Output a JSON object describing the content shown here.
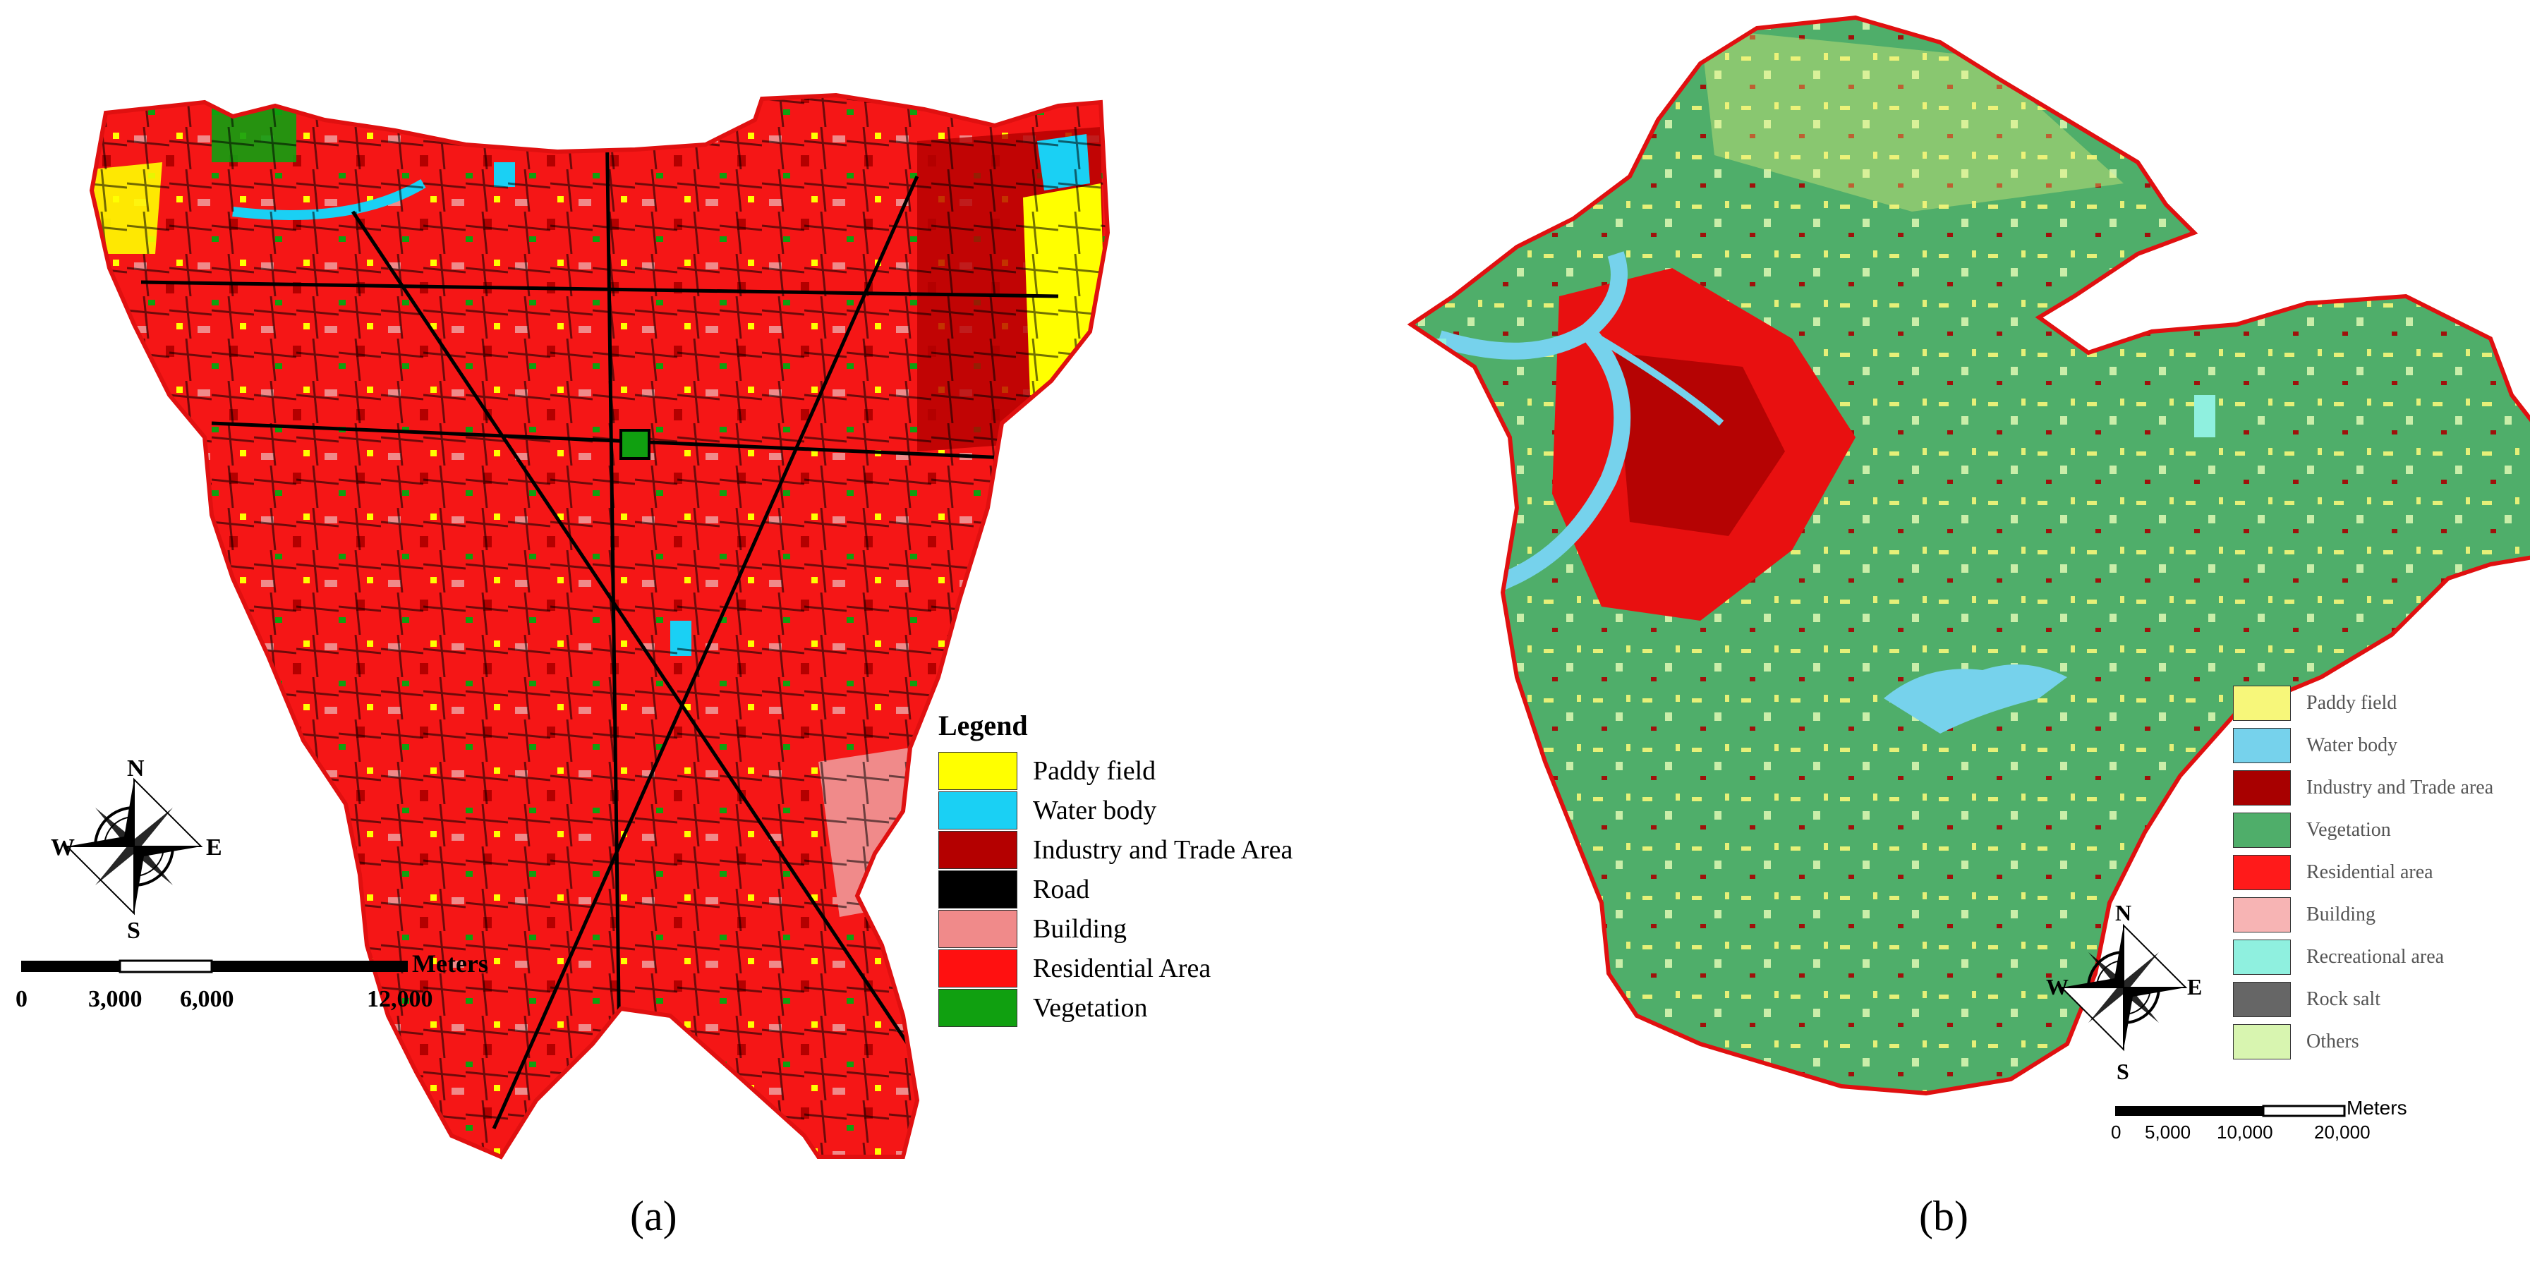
{
  "panel_a": {
    "caption": "(a)",
    "legend": {
      "title": "Legend",
      "items": [
        {
          "label": "Paddy field",
          "color": "#ffff00"
        },
        {
          "label": "Water body",
          "color": "#1ad0f4"
        },
        {
          "label": "Industry and Trade Area",
          "color": "#b40000"
        },
        {
          "label": "Road",
          "color": "#000000"
        },
        {
          "label": "Building",
          "color": "#f08a8a"
        },
        {
          "label": "Residential Area",
          "color": "#ff1010"
        },
        {
          "label": "Vegetation",
          "color": "#10a010"
        }
      ]
    },
    "compass": {
      "n": "N",
      "s": "S",
      "e": "E",
      "w": "W"
    },
    "scale": {
      "unit": "Meters",
      "ticks": [
        "0",
        "3,000",
        "6,000",
        "12,000"
      ]
    }
  },
  "panel_b": {
    "caption": "(b)",
    "legend": {
      "items": [
        {
          "label": "Paddy field",
          "color": "#f7f77a"
        },
        {
          "label": "Water body",
          "color": "#76d2ec"
        },
        {
          "label": "Industry and Trade area",
          "color": "#a80000"
        },
        {
          "label": "Vegetation",
          "color": "#4fae6a"
        },
        {
          "label": "Residential area",
          "color": "#ff1a1a"
        },
        {
          "label": "Building",
          "color": "#f7b4b4"
        },
        {
          "label": "Recreational area",
          "color": "#8ff0df"
        },
        {
          "label": "Rock salt",
          "color": "#666666"
        },
        {
          "label": "Others",
          "color": "#d8f5b0"
        }
      ]
    },
    "compass": {
      "n": "N",
      "s": "S",
      "e": "E",
      "w": "W"
    },
    "scale": {
      "unit": "Meters",
      "ticks": [
        "0",
        "5,000",
        "10,000",
        "20,000"
      ]
    }
  }
}
